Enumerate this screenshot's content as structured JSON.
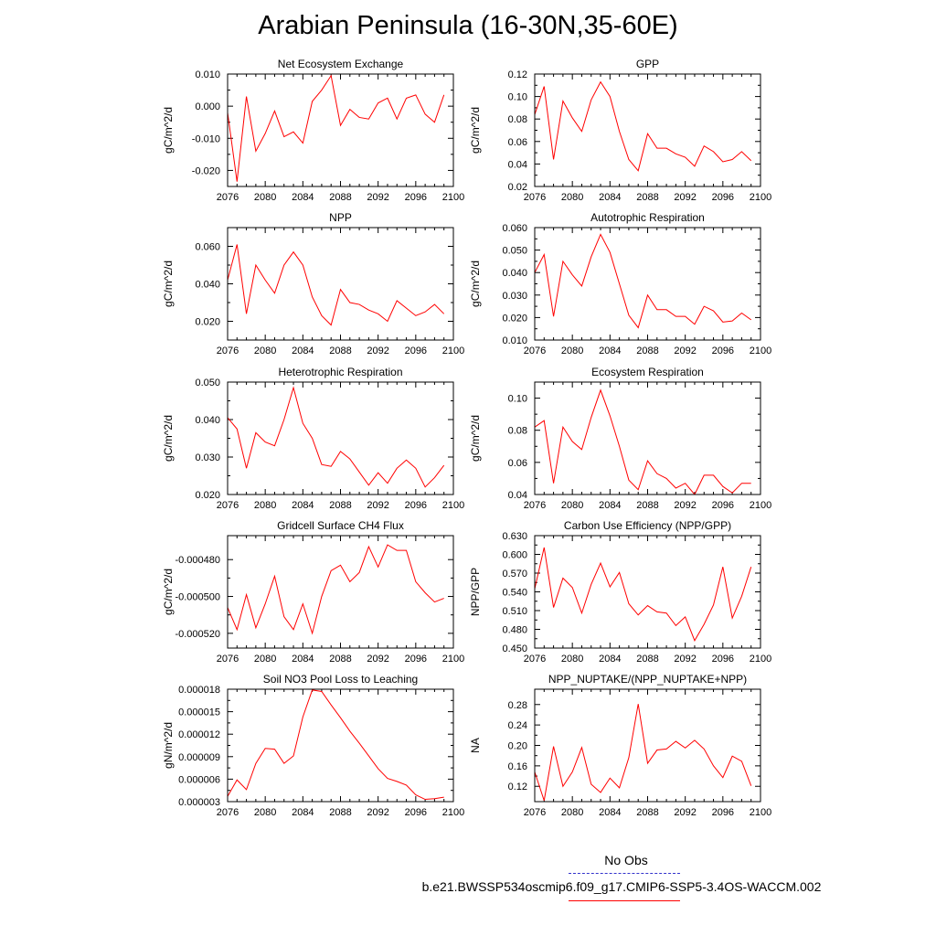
{
  "page": {
    "title": "Arabian Peninsula (16-30N,35-60E)"
  },
  "legend": {
    "obs_label": "No Obs",
    "run_label": "b.e21.BWSSP534oscmip6.f09_g17.CMIP6-SSP5-3.4OS-WACCM.002",
    "obs_color": "#3333cc",
    "run_color": "#ff0000"
  },
  "chart_data": [
    {
      "type": "line",
      "title": "Net Ecosystem Exchange",
      "ylabel": "gC/m^2/d",
      "xlim": [
        2076,
        2100
      ],
      "ylim": [
        -0.025,
        0.01
      ],
      "xticks": [
        "2076",
        "2080",
        "2084",
        "2088",
        "2092",
        "2096",
        "2100"
      ],
      "yticks": [
        -0.02,
        -0.01,
        0.0,
        0.01
      ],
      "ytick_labels": [
        "-0.020",
        "-0.010",
        "0.000",
        "0.010"
      ],
      "series": [
        {
          "color": "#ff0000",
          "x": [
            2076,
            2077,
            2078,
            2079,
            2080,
            2081,
            2082,
            2083,
            2084,
            2085,
            2086,
            2087,
            2088,
            2089,
            2090,
            2091,
            2092,
            2093,
            2094,
            2095,
            2096,
            2097,
            2098,
            2099
          ],
          "values": [
            -0.002,
            -0.0235,
            0.003,
            -0.014,
            -0.0085,
            -0.0015,
            -0.0095,
            -0.008,
            -0.0115,
            0.0015,
            0.005,
            0.0095,
            -0.006,
            -0.001,
            -0.0035,
            -0.004,
            0.001,
            0.0025,
            -0.004,
            0.0025,
            0.0035,
            -0.0025,
            -0.005,
            0.0035
          ]
        }
      ]
    },
    {
      "type": "line",
      "title": "GPP",
      "ylabel": "gC/m^2/d",
      "xlim": [
        2076,
        2100
      ],
      "ylim": [
        0.02,
        0.12
      ],
      "xticks": [
        "2076",
        "2080",
        "2084",
        "2088",
        "2092",
        "2096",
        "2100"
      ],
      "yticks": [
        0.02,
        0.04,
        0.06,
        0.08,
        0.1,
        0.12
      ],
      "ytick_labels": [
        "0.02",
        "0.04",
        "0.06",
        "0.08",
        "0.10",
        "0.12"
      ],
      "series": [
        {
          "color": "#ff0000",
          "x": [
            2076,
            2077,
            2078,
            2079,
            2080,
            2081,
            2082,
            2083,
            2084,
            2085,
            2086,
            2087,
            2088,
            2089,
            2090,
            2091,
            2092,
            2093,
            2094,
            2095,
            2096,
            2097,
            2098,
            2099
          ],
          "values": [
            0.084,
            0.109,
            0.044,
            0.096,
            0.081,
            0.069,
            0.097,
            0.113,
            0.1,
            0.069,
            0.044,
            0.034,
            0.067,
            0.054,
            0.054,
            0.049,
            0.046,
            0.038,
            0.056,
            0.051,
            0.042,
            0.044,
            0.051,
            0.043
          ]
        }
      ]
    },
    {
      "type": "line",
      "title": "NPP",
      "ylabel": "gC/m^2/d",
      "xlim": [
        2076,
        2100
      ],
      "ylim": [
        0.01,
        0.07
      ],
      "xticks": [
        "2076",
        "2080",
        "2084",
        "2088",
        "2092",
        "2096",
        "2100"
      ],
      "yticks": [
        0.02,
        0.04,
        0.06
      ],
      "ytick_labels": [
        "0.020",
        "0.040",
        "0.060"
      ],
      "series": [
        {
          "color": "#ff0000",
          "x": [
            2076,
            2077,
            2078,
            2079,
            2080,
            2081,
            2082,
            2083,
            2084,
            2085,
            2086,
            2087,
            2088,
            2089,
            2090,
            2091,
            2092,
            2093,
            2094,
            2095,
            2096,
            2097,
            2098,
            2099
          ],
          "values": [
            0.042,
            0.061,
            0.024,
            0.05,
            0.042,
            0.035,
            0.05,
            0.057,
            0.05,
            0.033,
            0.023,
            0.018,
            0.037,
            0.03,
            0.029,
            0.026,
            0.024,
            0.02,
            0.031,
            0.027,
            0.023,
            0.025,
            0.029,
            0.024
          ]
        }
      ]
    },
    {
      "type": "line",
      "title": "Autotrophic Respiration",
      "ylabel": "gC/m^2/d",
      "xlim": [
        2076,
        2100
      ],
      "ylim": [
        0.01,
        0.06
      ],
      "xticks": [
        "2076",
        "2080",
        "2084",
        "2088",
        "2092",
        "2096",
        "2100"
      ],
      "yticks": [
        0.01,
        0.02,
        0.03,
        0.04,
        0.05,
        0.06
      ],
      "ytick_labels": [
        "0.010",
        "0.020",
        "0.030",
        "0.040",
        "0.050",
        "0.060"
      ],
      "series": [
        {
          "color": "#ff0000",
          "x": [
            2076,
            2077,
            2078,
            2079,
            2080,
            2081,
            2082,
            2083,
            2084,
            2085,
            2086,
            2087,
            2088,
            2089,
            2090,
            2091,
            2092,
            2093,
            2094,
            2095,
            2096,
            2097,
            2098,
            2099
          ],
          "values": [
            0.04,
            0.048,
            0.0205,
            0.045,
            0.039,
            0.034,
            0.047,
            0.057,
            0.049,
            0.035,
            0.021,
            0.0155,
            0.03,
            0.0235,
            0.0235,
            0.0205,
            0.0205,
            0.017,
            0.025,
            0.023,
            0.018,
            0.0185,
            0.022,
            0.019
          ]
        }
      ]
    },
    {
      "type": "line",
      "title": "Heterotrophic Respiration",
      "ylabel": "gC/m^2/d",
      "xlim": [
        2076,
        2100
      ],
      "ylim": [
        0.02,
        0.05
      ],
      "xticks": [
        "2076",
        "2080",
        "2084",
        "2088",
        "2092",
        "2096",
        "2100"
      ],
      "yticks": [
        0.02,
        0.03,
        0.04,
        0.05
      ],
      "ytick_labels": [
        "0.020",
        "0.030",
        "0.040",
        "0.050"
      ],
      "series": [
        {
          "color": "#ff0000",
          "x": [
            2076,
            2077,
            2078,
            2079,
            2080,
            2081,
            2082,
            2083,
            2084,
            2085,
            2086,
            2087,
            2088,
            2089,
            2090,
            2091,
            2092,
            2093,
            2094,
            2095,
            2096,
            2097,
            2098,
            2099
          ],
          "values": [
            0.0405,
            0.0375,
            0.027,
            0.0365,
            0.034,
            0.033,
            0.04,
            0.0485,
            0.039,
            0.035,
            0.028,
            0.0275,
            0.0315,
            0.0295,
            0.026,
            0.0225,
            0.0258,
            0.023,
            0.027,
            0.0292,
            0.027,
            0.022,
            0.0245,
            0.0278
          ]
        }
      ]
    },
    {
      "type": "line",
      "title": "Ecosystem Respiration",
      "ylabel": "gC/m^2/d",
      "xlim": [
        2076,
        2100
      ],
      "ylim": [
        0.04,
        0.11
      ],
      "xticks": [
        "2076",
        "2080",
        "2084",
        "2088",
        "2092",
        "2096",
        "2100"
      ],
      "yticks": [
        0.04,
        0.06,
        0.08,
        0.1
      ],
      "ytick_labels": [
        "0.04",
        "0.06",
        "0.08",
        "0.10"
      ],
      "series": [
        {
          "color": "#ff0000",
          "x": [
            2076,
            2077,
            2078,
            2079,
            2080,
            2081,
            2082,
            2083,
            2084,
            2085,
            2086,
            2087,
            2088,
            2089,
            2090,
            2091,
            2092,
            2093,
            2094,
            2095,
            2096,
            2097,
            2098,
            2099
          ],
          "values": [
            0.082,
            0.086,
            0.047,
            0.082,
            0.073,
            0.068,
            0.088,
            0.105,
            0.089,
            0.07,
            0.049,
            0.043,
            0.061,
            0.053,
            0.05,
            0.044,
            0.047,
            0.04,
            0.052,
            0.052,
            0.045,
            0.041,
            0.047,
            0.047
          ]
        }
      ]
    },
    {
      "type": "line",
      "title": "Gridcell Surface CH4 Flux",
      "ylabel": "gC/m^2/d",
      "xlim": [
        2076,
        2100
      ],
      "ylim": [
        -0.000528,
        -0.000467
      ],
      "xticks": [
        "2076",
        "2080",
        "2084",
        "2088",
        "2092",
        "2096",
        "2100"
      ],
      "yticks": [
        -0.00052,
        -0.0005,
        -0.00048
      ],
      "ytick_labels": [
        "-0.000520",
        "-0.000500",
        "-0.000480"
      ],
      "series": [
        {
          "color": "#ff0000",
          "x": [
            2076,
            2077,
            2078,
            2079,
            2080,
            2081,
            2082,
            2083,
            2084,
            2085,
            2086,
            2087,
            2088,
            2089,
            2090,
            2091,
            2092,
            2093,
            2094,
            2095,
            2096,
            2097,
            2098,
            2099
          ],
          "values": [
            -0.000506,
            -0.000518,
            -0.000499,
            -0.000517,
            -0.000504,
            -0.000489,
            -0.000511,
            -0.000518,
            -0.000504,
            -0.00052,
            -0.0005,
            -0.000486,
            -0.000483,
            -0.000492,
            -0.000487,
            -0.000473,
            -0.000484,
            -0.000472,
            -0.000475,
            -0.000475,
            -0.000492,
            -0.000498,
            -0.000503,
            -0.000501
          ]
        }
      ]
    },
    {
      "type": "line",
      "title": "Carbon Use Efficiency (NPP/GPP)",
      "ylabel": "NPP/GPP",
      "xlim": [
        2076,
        2100
      ],
      "ylim": [
        0.45,
        0.63
      ],
      "xticks": [
        "2076",
        "2080",
        "2084",
        "2088",
        "2092",
        "2096",
        "2100"
      ],
      "yticks": [
        0.45,
        0.48,
        0.51,
        0.54,
        0.57,
        0.6,
        0.63
      ],
      "ytick_labels": [
        "0.450",
        "0.480",
        "0.510",
        "0.540",
        "0.570",
        "0.600",
        "0.630"
      ],
      "series": [
        {
          "color": "#ff0000",
          "x": [
            2076,
            2077,
            2078,
            2079,
            2080,
            2081,
            2082,
            2083,
            2084,
            2085,
            2086,
            2087,
            2088,
            2089,
            2090,
            2091,
            2092,
            2093,
            2094,
            2095,
            2096,
            2097,
            2098,
            2099
          ],
          "values": [
            0.545,
            0.611,
            0.515,
            0.562,
            0.547,
            0.506,
            0.552,
            0.586,
            0.548,
            0.571,
            0.521,
            0.503,
            0.518,
            0.508,
            0.506,
            0.486,
            0.5,
            0.462,
            0.488,
            0.519,
            0.58,
            0.498,
            0.533,
            0.58
          ]
        }
      ]
    },
    {
      "type": "line",
      "title": "Soil NO3 Pool Loss to Leaching",
      "ylabel": "gN/m^2/d",
      "xlim": [
        2076,
        2100
      ],
      "ylim": [
        3e-06,
        1.8e-05
      ],
      "xticks": [
        "2076",
        "2080",
        "2084",
        "2088",
        "2092",
        "2096",
        "2100"
      ],
      "yticks": [
        3e-06,
        6e-06,
        9e-06,
        1.2e-05,
        1.5e-05,
        1.8e-05
      ],
      "ytick_labels": [
        "0.000003",
        "0.000006",
        "0.000009",
        "0.000012",
        "0.000015",
        "0.000018"
      ],
      "series": [
        {
          "color": "#ff0000",
          "x": [
            2076,
            2077,
            2078,
            2079,
            2080,
            2081,
            2082,
            2083,
            2084,
            2085,
            2086,
            2087,
            2088,
            2089,
            2090,
            2091,
            2092,
            2093,
            2094,
            2095,
            2096,
            2097,
            2098,
            2099
          ],
          "values": [
            3.7e-06,
            5.9e-06,
            4.6e-06,
            8.1e-06,
            1.01e-05,
            1e-05,
            8.1e-06,
            9.1e-06,
            1.43e-05,
            1.79e-05,
            1.77e-05,
            1.59e-05,
            1.42e-05,
            1.24e-05,
            1.08e-05,
            9.1e-06,
            7.4e-06,
            6.1e-06,
            5.7e-06,
            5.2e-06,
            3.9e-06,
            3.3e-06,
            3.4e-06,
            3.6e-06
          ]
        }
      ]
    },
    {
      "type": "line",
      "title": "NPP_NUPTAKE/(NPP_NUPTAKE+NPP)",
      "ylabel": "NA",
      "xlim": [
        2076,
        2100
      ],
      "ylim": [
        0.09,
        0.31
      ],
      "xticks": [
        "2076",
        "2080",
        "2084",
        "2088",
        "2092",
        "2096",
        "2100"
      ],
      "yticks": [
        0.12,
        0.16,
        0.2,
        0.24,
        0.28
      ],
      "ytick_labels": [
        "0.12",
        "0.16",
        "0.20",
        "0.24",
        "0.28"
      ],
      "series": [
        {
          "color": "#ff0000",
          "x": [
            2076,
            2077,
            2078,
            2079,
            2080,
            2081,
            2082,
            2083,
            2084,
            2085,
            2086,
            2087,
            2088,
            2089,
            2090,
            2091,
            2092,
            2093,
            2094,
            2095,
            2096,
            2097,
            2098,
            2099
          ],
          "values": [
            0.148,
            0.092,
            0.198,
            0.12,
            0.148,
            0.196,
            0.124,
            0.108,
            0.136,
            0.117,
            0.176,
            0.281,
            0.165,
            0.191,
            0.193,
            0.208,
            0.195,
            0.21,
            0.193,
            0.16,
            0.137,
            0.179,
            0.169,
            0.121
          ]
        }
      ]
    }
  ]
}
